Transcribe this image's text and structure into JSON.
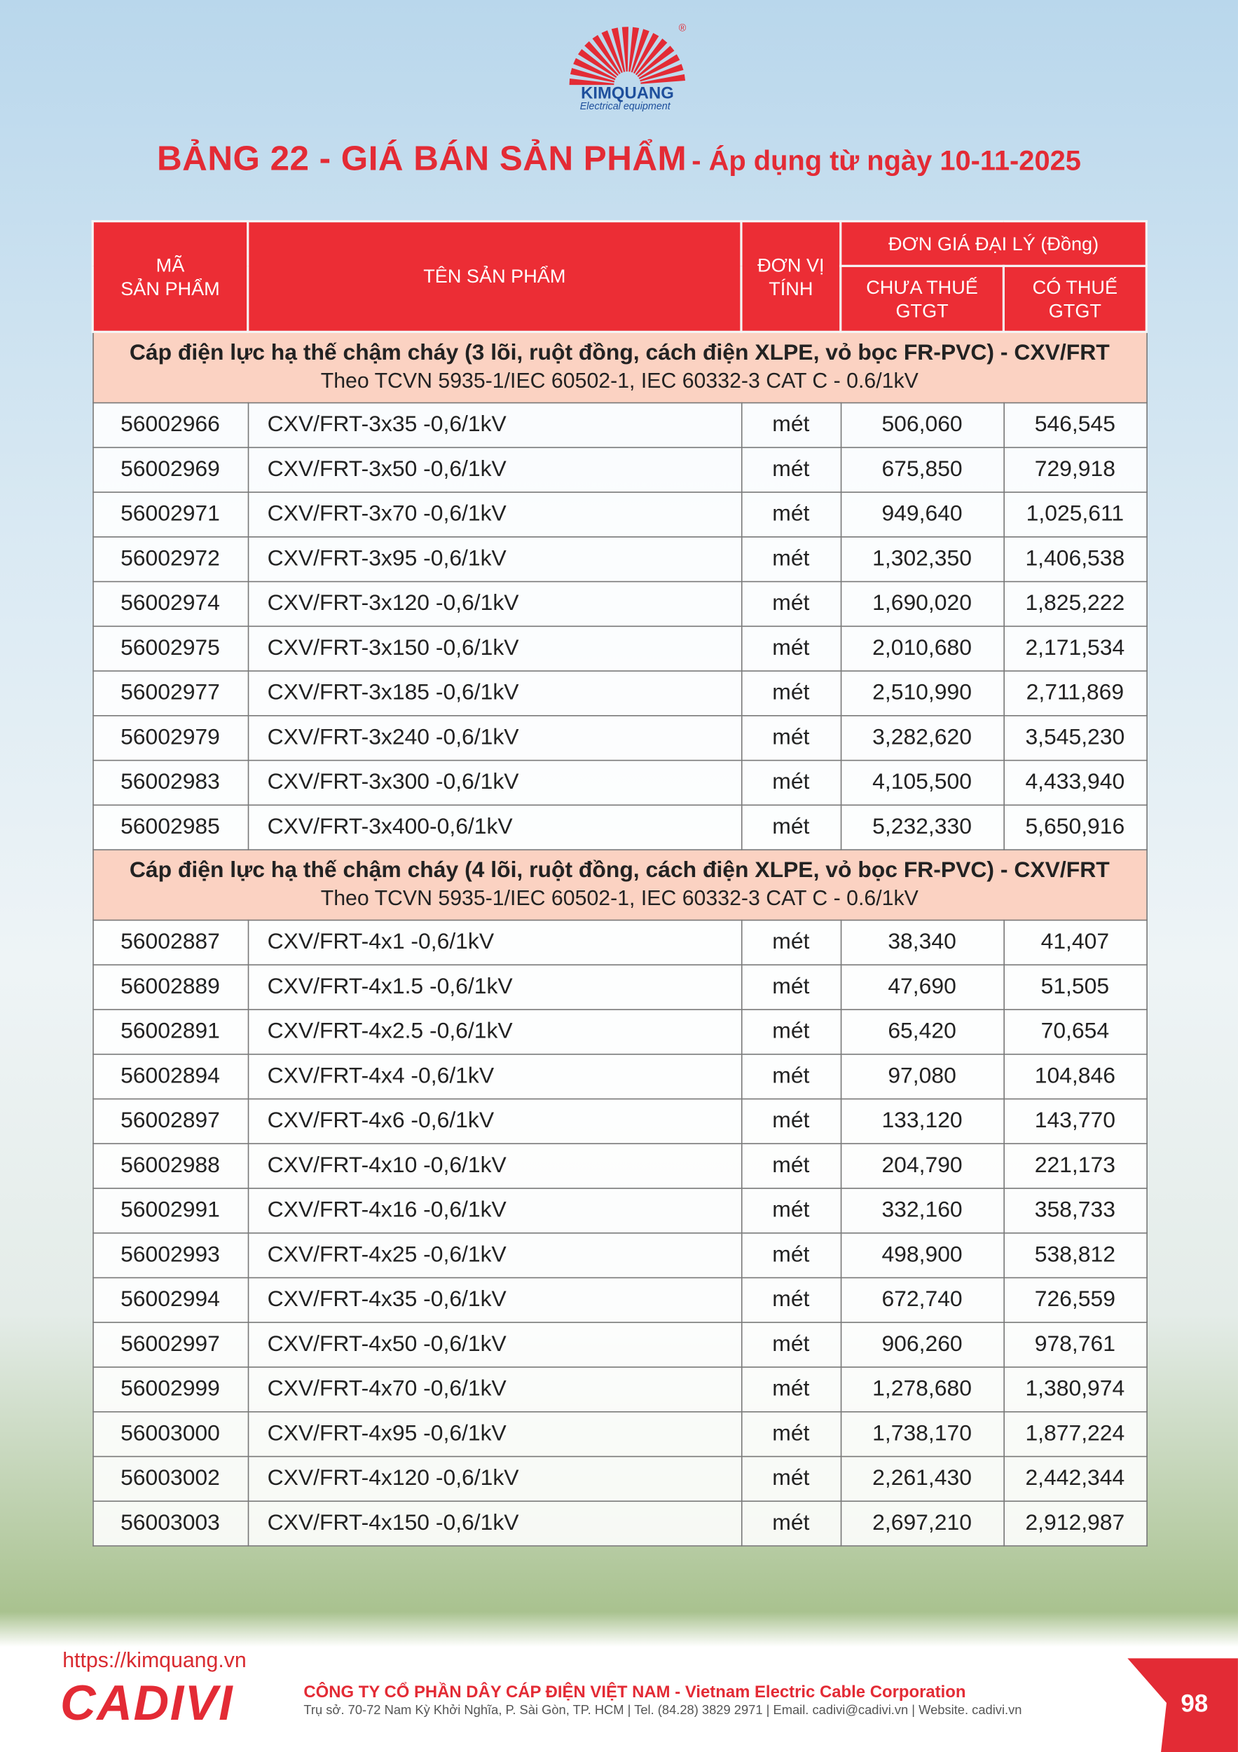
{
  "logo": {
    "brand": "KIMQUANG",
    "tagline": "Electrical equipment",
    "registered": "®"
  },
  "header": {
    "title": "BẢNG 22 - GIÁ BÁN SẢN PHẨM",
    "subtitle": "- Áp dụng từ ngày 10-11-2025"
  },
  "table": {
    "columns": {
      "code": [
        "MÃ",
        "SẢN PHẨM"
      ],
      "name": "TÊN SẢN PHẨM",
      "unit": [
        "ĐƠN VỊ",
        "TÍNH"
      ],
      "price_group": "ĐƠN GIÁ ĐẠI LÝ (Đồng)",
      "price_net": [
        "CHƯA THUẾ",
        "GTGT"
      ],
      "price_vat": [
        "CÓ THUẾ",
        "GTGT"
      ]
    },
    "sections": [
      {
        "title": "Cáp điện lực hạ thế chậm cháy (3 lõi, ruột đồng, cách điện XLPE, vỏ bọc FR-PVC) - CXV/FRT",
        "standard": "Theo TCVN 5935-1/IEC 60502-1, IEC 60332-3 CAT C - 0.6/1kV",
        "rows": [
          [
            "56002966",
            "CXV/FRT-3x35 -0,6/1kV",
            "mét",
            "506,060",
            "546,545"
          ],
          [
            "56002969",
            "CXV/FRT-3x50 -0,6/1kV",
            "mét",
            "675,850",
            "729,918"
          ],
          [
            "56002971",
            "CXV/FRT-3x70 -0,6/1kV",
            "mét",
            "949,640",
            "1,025,611"
          ],
          [
            "56002972",
            "CXV/FRT-3x95 -0,6/1kV",
            "mét",
            "1,302,350",
            "1,406,538"
          ],
          [
            "56002974",
            "CXV/FRT-3x120 -0,6/1kV",
            "mét",
            "1,690,020",
            "1,825,222"
          ],
          [
            "56002975",
            "CXV/FRT-3x150 -0,6/1kV",
            "mét",
            "2,010,680",
            "2,171,534"
          ],
          [
            "56002977",
            "CXV/FRT-3x185 -0,6/1kV",
            "mét",
            "2,510,990",
            "2,711,869"
          ],
          [
            "56002979",
            "CXV/FRT-3x240 -0,6/1kV",
            "mét",
            "3,282,620",
            "3,545,230"
          ],
          [
            "56002983",
            "CXV/FRT-3x300 -0,6/1kV",
            "mét",
            "4,105,500",
            "4,433,940"
          ],
          [
            "56002985",
            "CXV/FRT-3x400-0,6/1kV",
            "mét",
            "5,232,330",
            "5,650,916"
          ]
        ]
      },
      {
        "title": "Cáp điện lực hạ thế chậm cháy (4 lõi, ruột đồng, cách điện XLPE, vỏ bọc FR-PVC) - CXV/FRT",
        "standard": "Theo TCVN 5935-1/IEC 60502-1, IEC 60332-3 CAT C - 0.6/1kV",
        "rows": [
          [
            "56002887",
            "CXV/FRT-4x1 -0,6/1kV",
            "mét",
            "38,340",
            "41,407"
          ],
          [
            "56002889",
            "CXV/FRT-4x1.5 -0,6/1kV",
            "mét",
            "47,690",
            "51,505"
          ],
          [
            "56002891",
            "CXV/FRT-4x2.5 -0,6/1kV",
            "mét",
            "65,420",
            "70,654"
          ],
          [
            "56002894",
            "CXV/FRT-4x4 -0,6/1kV",
            "mét",
            "97,080",
            "104,846"
          ],
          [
            "56002897",
            "CXV/FRT-4x6 -0,6/1kV",
            "mét",
            "133,120",
            "143,770"
          ],
          [
            "56002988",
            "CXV/FRT-4x10 -0,6/1kV",
            "mét",
            "204,790",
            "221,173"
          ],
          [
            "56002991",
            "CXV/FRT-4x16 -0,6/1kV",
            "mét",
            "332,160",
            "358,733"
          ],
          [
            "56002993",
            "CXV/FRT-4x25 -0,6/1kV",
            "mét",
            "498,900",
            "538,812"
          ],
          [
            "56002994",
            "CXV/FRT-4x35 -0,6/1kV",
            "mét",
            "672,740",
            "726,559"
          ],
          [
            "56002997",
            "CXV/FRT-4x50 -0,6/1kV",
            "mét",
            "906,260",
            "978,761"
          ],
          [
            "56002999",
            "CXV/FRT-4x70 -0,6/1kV",
            "mét",
            "1,278,680",
            "1,380,974"
          ],
          [
            "56003000",
            "CXV/FRT-4x95 -0,6/1kV",
            "mét",
            "1,738,170",
            "1,877,224"
          ],
          [
            "56003002",
            "CXV/FRT-4x120 -0,6/1kV",
            "mét",
            "2,261,430",
            "2,442,344"
          ],
          [
            "56003003",
            "CXV/FRT-4x150 -0,6/1kV",
            "mét",
            "2,697,210",
            "2,912,987"
          ]
        ]
      }
    ]
  },
  "footer": {
    "url": "https://kimquang.vn",
    "brand": "CADIVI",
    "company": "CÔNG TY CỔ PHẦN DÂY CÁP ĐIỆN VIỆT NAM - Vietnam Electric Cable Corporation",
    "address": "Trụ sở. 70-72 Nam Kỳ Khởi Nghĩa, P. Sài Gòn, TP. HCM | Tel. (84.28) 3829 2971 | Email. cadivi@cadivi.vn | Website. cadivi.vn",
    "page": "98"
  }
}
